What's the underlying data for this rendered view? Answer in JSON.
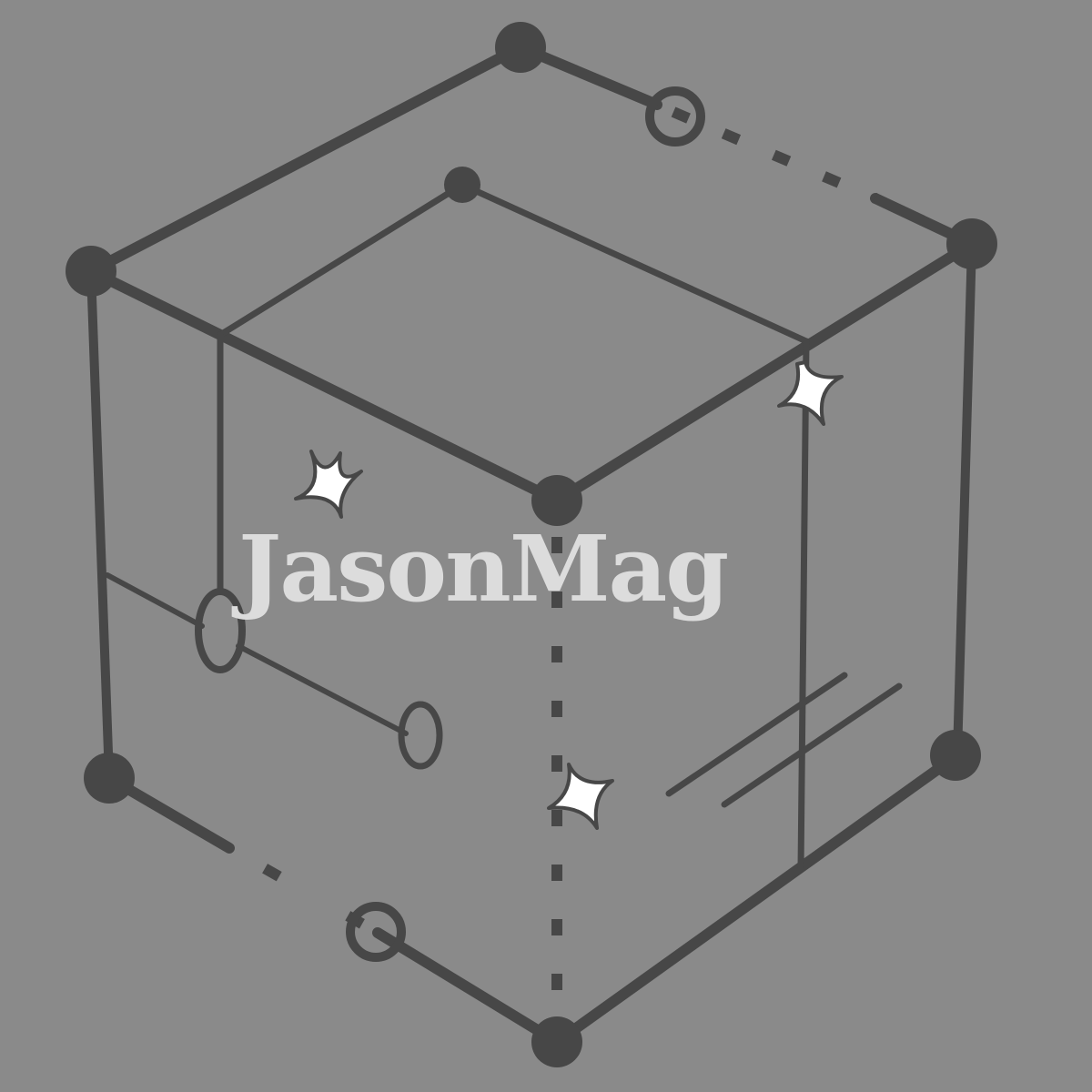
{
  "logo": {
    "text": "JasonMag"
  },
  "icons": {
    "cube": "wireframe-cube-icon",
    "sparkle": "sparkle-icon"
  },
  "colors": {
    "background": "#8a8a8a",
    "line": "#474747",
    "logo_text": "#dcdcdc",
    "sparkle_fill": "#ffffff"
  }
}
